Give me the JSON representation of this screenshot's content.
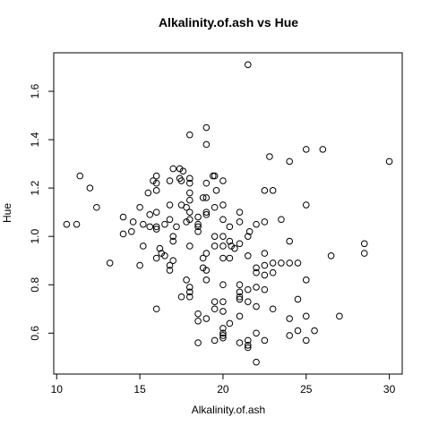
{
  "chart_data": {
    "type": "scatter",
    "title": "Alkalinity.of.ash vs Hue",
    "x_label": "Alkalinity.of.ash",
    "y_label": "Hue",
    "color": "#000000",
    "xlim": [
      9.824,
      30.776
    ],
    "ylim": [
      0.4308,
      1.7592
    ],
    "xticks": [
      10,
      15,
      20,
      25,
      30
    ],
    "yticks": [
      0.6,
      0.8,
      {
        "value": 1,
        "label": "1.0"
      },
      1.2,
      1.4,
      1.6
    ],
    "x": [
      10.6,
      11.2,
      11.4,
      12,
      12.4,
      13.2,
      14,
      14,
      14.5,
      14.6,
      15,
      15,
      15.2,
      15.2,
      15.5,
      15.6,
      15.6,
      15.8,
      16,
      16,
      16,
      16,
      16,
      16,
      16,
      16,
      16.2,
      16.3,
      16.5,
      16.5,
      16.8,
      16.8,
      16.8,
      16.8,
      16.8,
      17,
      17,
      17,
      17,
      17.2,
      17.4,
      17.4,
      17.5,
      17.5,
      17.6,
      17.8,
      17.8,
      17.5,
      17.8,
      18,
      18,
      18,
      18,
      18,
      18,
      18,
      18,
      18,
      18,
      18,
      18.5,
      18.5,
      18.5,
      18.5,
      18.5,
      18.5,
      18.5,
      18.8,
      18.8,
      18.8,
      19,
      19,
      19,
      19,
      19,
      19,
      19,
      19,
      19,
      19,
      19.4,
      19.5,
      19.5,
      19.5,
      19.5,
      19.5,
      19.5,
      19.6,
      19.5,
      20,
      20,
      20,
      20,
      20,
      20,
      20,
      20,
      20,
      20,
      20,
      20,
      20,
      20.4,
      20.4,
      20.4,
      20.4,
      20.5,
      20.7,
      21,
      21,
      21,
      21,
      21,
      21,
      21,
      21,
      21,
      21.5,
      21.5,
      21.5,
      21.5,
      21.5,
      21.5,
      21.5,
      21.5,
      21.6,
      22,
      22,
      22,
      22,
      22,
      22,
      22,
      22.5,
      22.5,
      22.5,
      22.5,
      22.5,
      22.5,
      22.5,
      22.8,
      23,
      23,
      23,
      23,
      23.5,
      23.5,
      24,
      24,
      24,
      24,
      24,
      24.5,
      24.5,
      24.5,
      25,
      25,
      25,
      25,
      25,
      25.5,
      26,
      26.5,
      27,
      28.5,
      28.5,
      30
    ],
    "values": [
      1.05,
      1.05,
      1.25,
      1.2,
      1.12,
      0.89,
      1.08,
      1.01,
      1.02,
      1.06,
      1.12,
      0.88,
      1.05,
      0.96,
      1.18,
      1.04,
      1.09,
      1.23,
      1.25,
      1.22,
      1.19,
      1.1,
      1.04,
      1.03,
      0.91,
      0.7,
      0.95,
      0.93,
      1.05,
      0.92,
      1.23,
      1.13,
      1.07,
      0.86,
      0.88,
      1.28,
      1.0,
      0.98,
      0.9,
      1.04,
      1.28,
      1.24,
      1.23,
      1.13,
      1.27,
      1.06,
      0.82,
      0.75,
      1.12,
      1.42,
      1.24,
      1.22,
      1.18,
      1.15,
      1.1,
      1.07,
      0.96,
      0.79,
      0.77,
      0.75,
      1.08,
      1.05,
      1.04,
      1.02,
      0.68,
      0.65,
      0.56,
      1.16,
      0.91,
      0.87,
      1.45,
      1.38,
      1.22,
      1.16,
      1.1,
      1.09,
      0.93,
      0.86,
      0.82,
      0.66,
      1.25,
      1.25,
      1.12,
      0.96,
      0.73,
      0.7,
      0.57,
      1.19,
      1.0,
      1.23,
      1.13,
      1.07,
      1.0,
      0.96,
      0.91,
      0.8,
      0.73,
      0.62,
      0.6,
      0.59,
      0.58,
      0.69,
      1.04,
      0.98,
      0.91,
      0.64,
      0.96,
      0.95,
      1.1,
      1.06,
      0.97,
      0.8,
      0.77,
      0.75,
      0.74,
      0.56,
      0.67,
      1.71,
      1.0,
      0.92,
      0.78,
      0.73,
      0.57,
      0.55,
      0.54,
      1.02,
      1.05,
      0.87,
      0.85,
      0.79,
      0.71,
      0.6,
      0.48,
      1.19,
      1.06,
      0.93,
      0.88,
      0.84,
      0.57,
      0.78,
      1.33,
      1.19,
      0.89,
      0.85,
      0.7,
      1.07,
      0.89,
      1.31,
      0.98,
      0.89,
      0.66,
      0.59,
      0.89,
      0.74,
      0.61,
      1.36,
      1.13,
      0.82,
      0.67,
      0.57,
      0.61,
      1.36,
      0.92,
      0.67,
      0.97,
      0.93,
      1.31
    ]
  }
}
